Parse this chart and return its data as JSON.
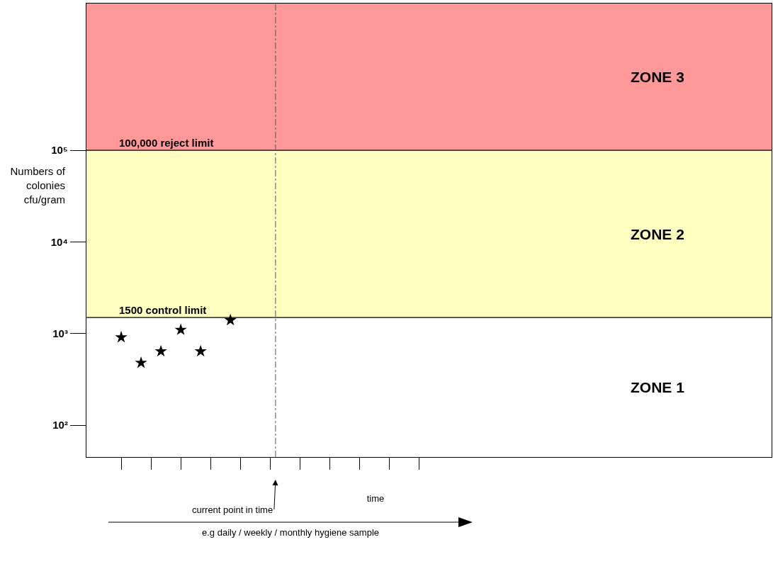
{
  "chart_data": {
    "type": "scatter",
    "xlabel": "time",
    "ylabel": "Numbers of colonies cfu/gram",
    "log": "y",
    "marker": "star",
    "categories": [
      null,
      null,
      null,
      null,
      null,
      null,
      null,
      null,
      null,
      null,
      null,
      null,
      null,
      null,
      null,
      null,
      null,
      null,
      null,
      null,
      null,
      null,
      null,
      null,
      null,
      null,
      null,
      null,
      null,
      null,
      null,
      null,
      null,
      null,
      null,
      null,
      null,
      null,
      null,
      null,
      null,
      null,
      null,
      null,
      null,
      null,
      null,
      null,
      null,
      null,
      null,
      null,
      null,
      null,
      null,
      null,
      null,
      null,
      null,
      null,
      null,
      null,
      null,
      null,
      null,
      null,
      null,
      null,
      null
    ],
    "series": [
      {
        "color": "#000000",
        "values": [
          null,
          null,
          null,
          910,
          null,
          480,
          null,
          640,
          null,
          1100,
          null,
          640,
          null,
          null,
          1400,
          null,
          null,
          null,
          null,
          null,
          null,
          null,
          null,
          null,
          null,
          null,
          null,
          null,
          null,
          null,
          null,
          null,
          null,
          null,
          null,
          null,
          null,
          null,
          null,
          null,
          null,
          null,
          null,
          null,
          null,
          null,
          null,
          null,
          null,
          null,
          null,
          null,
          null,
          null,
          null,
          null,
          null,
          null,
          null,
          null,
          null,
          null,
          null,
          null,
          null,
          null,
          null,
          null,
          null
        ]
      }
    ],
    "ylim": [
      45,
      4000000
    ],
    "yticks": [
      {
        "value": 100,
        "label": "10²"
      },
      {
        "value": 1000,
        "label": "10³"
      },
      {
        "value": 10000,
        "label": "10⁴"
      },
      {
        "value": 100000,
        "label": "10⁵"
      }
    ],
    "bands": [
      {
        "axis": "y",
        "from": 100000,
        "to": 4000000,
        "label": "ZONE 3",
        "color": "#ff0000"
      },
      {
        "axis": "y",
        "from": 1500,
        "to": 100000,
        "label": "ZONE 2",
        "color": "#ffff66"
      }
    ],
    "ref_lines": [
      {
        "axis": "y",
        "value": 100000,
        "label": "100,000 reject limit",
        "color": "#000000"
      },
      {
        "axis": "y",
        "value": 1500,
        "label": "1500 control limit",
        "color": "#000000"
      },
      {
        "axis": "x",
        "label": "current point in time",
        "color": "#555555",
        "line_style": "dashed"
      }
    ],
    "annotations": [
      "ZONE 1",
      "e.g daily / weekly / monthly hygiene sample"
    ]
  }
}
